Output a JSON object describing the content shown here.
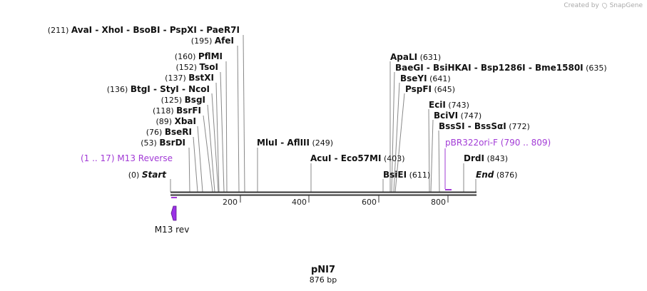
{
  "credit": {
    "text": "Created by",
    "brand": "SnapGene"
  },
  "map": {
    "name": "pNI7",
    "length_label": "876 bp",
    "length_bp": 876,
    "start_label": "Start",
    "start_pos": "(0)",
    "end_label": "End",
    "end_pos": "(876)",
    "axis_ticks": [
      {
        "value": 200,
        "label": "200"
      },
      {
        "value": 400,
        "label": "400"
      },
      {
        "value": 600,
        "label": "600"
      },
      {
        "value": 800,
        "label": "800"
      }
    ],
    "left_sites": [
      {
        "pos": "(211)",
        "bp": 211,
        "names": [
          "AvaI",
          "XhoI",
          "BsoBI",
          "PspXI",
          "PaeR7I"
        ]
      },
      {
        "pos": "(195)",
        "bp": 195,
        "names": [
          "AfeI"
        ]
      },
      {
        "pos": "(160)",
        "bp": 160,
        "names": [
          "PflMI"
        ]
      },
      {
        "pos": "(152)",
        "bp": 152,
        "names": [
          "TsoI"
        ]
      },
      {
        "pos": "(137)",
        "bp": 137,
        "names": [
          "BstXI"
        ]
      },
      {
        "pos": "(136)",
        "bp": 136,
        "names": [
          "BtgI",
          "StyI",
          "NcoI"
        ]
      },
      {
        "pos": "(125)",
        "bp": 125,
        "names": [
          "BsgI"
        ]
      },
      {
        "pos": "(118)",
        "bp": 118,
        "names": [
          "BsrFI"
        ]
      },
      {
        "pos": "(89)",
        "bp": 89,
        "names": [
          "XbaI"
        ]
      },
      {
        "pos": "(76)",
        "bp": 76,
        "names": [
          "BseRI"
        ]
      },
      {
        "pos": "(53)",
        "bp": 53,
        "names": [
          "BsrDI"
        ]
      }
    ],
    "middle_sites": [
      {
        "pos": "(249)",
        "bp": 249,
        "names": [
          "MluI",
          "AflIII"
        ]
      },
      {
        "pos": "(403)",
        "bp": 403,
        "names": [
          "AcuI",
          "Eco57MI"
        ]
      },
      {
        "pos": "(611)",
        "bp": 611,
        "names": [
          "BsiEI"
        ]
      }
    ],
    "right_sites": [
      {
        "pos": "(631)",
        "bp": 631,
        "names": [
          "ApaLI"
        ]
      },
      {
        "pos": "(635)",
        "bp": 635,
        "names": [
          "BaeGI",
          "BsiHKAI",
          "Bsp1286I",
          "Bme1580I"
        ]
      },
      {
        "pos": "(641)",
        "bp": 641,
        "names": [
          "BseYI"
        ]
      },
      {
        "pos": "(645)",
        "bp": 645,
        "names": [
          "PspFI"
        ]
      },
      {
        "pos": "(743)",
        "bp": 743,
        "names": [
          "EciI"
        ]
      },
      {
        "pos": "(747)",
        "bp": 747,
        "names": [
          "BciVI"
        ]
      },
      {
        "pos": "(772)",
        "bp": 772,
        "names": [
          "BssSI",
          "BssSαI"
        ]
      },
      {
        "pos": "(843)",
        "bp": 843,
        "names": [
          "DrdI"
        ]
      }
    ],
    "primers": [
      {
        "name": "M13 Reverse",
        "range": "(1 .. 17)",
        "start": 1,
        "end": 17
      },
      {
        "name": "pBR322ori-F",
        "range": "(790 .. 809)",
        "start": 790,
        "end": 809
      }
    ],
    "feature": {
      "name": "M13 rev",
      "color": "#9b30e6"
    },
    "colors": {
      "primer": "#a23bd6",
      "feature": "#9b30e6",
      "line": "#888888",
      "backbone": "#333333"
    }
  }
}
